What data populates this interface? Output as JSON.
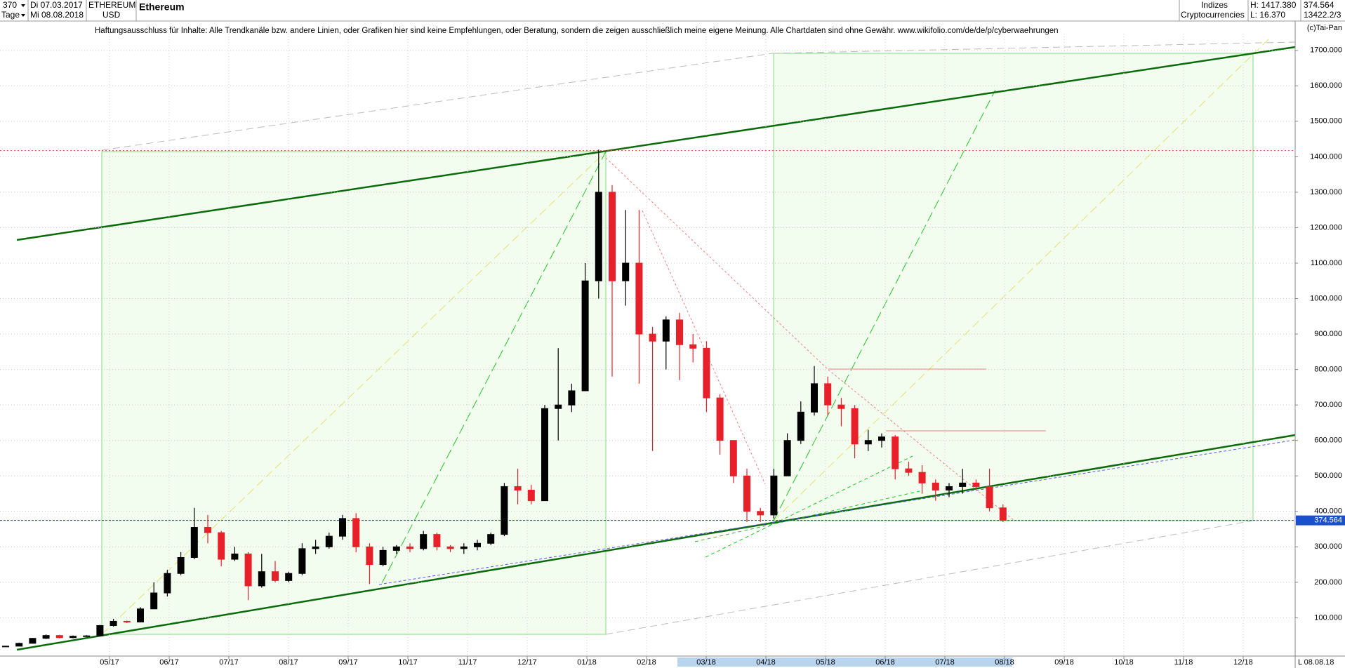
{
  "header": {
    "period": "370",
    "unit": "Tage",
    "from": "Di 07.03.2017",
    "to": "Mi 08.08.2018",
    "symbol": "ETHEREUM",
    "currency": "USD",
    "name": "Ethereum",
    "group": "Indizes",
    "subgroup": "Cryptocurrencies",
    "high": "H: 1417.380",
    "low": "L: 16.370",
    "last": "374.564",
    "id": "13422.2/3",
    "disclaimer": "Haftungsausschluss für Inhalte: Alle Trendkanäle bzw. andere Linien, oder Grafiken hier sind keine Empfehlungen, oder Beratung, sondern die zeigen ausschließlich meine eigene Meinung. Alle Chartdaten sind ohne Gewähr.  www.wikifolio.com/de/de/p/cyberwaehrungen",
    "copyright": "(c)Tai-Pan",
    "end_date": "08.08.18",
    "scale_mode": "L"
  },
  "chart_data": {
    "type": "candlestick",
    "title": "Ethereum",
    "xtick_labels": [
      "05/17",
      "06/17",
      "07/17",
      "08/17",
      "09/17",
      "10/17",
      "11/17",
      "12/17",
      "01/18",
      "02/18",
      "03/18",
      "04/18",
      "05/18",
      "06/18",
      "07/18",
      "08/18",
      "09/18",
      "10/18",
      "11/18",
      "12/18"
    ],
    "ylim": [
      -8,
      1747
    ],
    "yticks": [
      {
        "value": 100,
        "label": "100.000"
      },
      {
        "value": 200,
        "label": "200.000"
      },
      {
        "value": 300,
        "label": "300.000"
      },
      {
        "value": 400,
        "label": "400.000"
      },
      {
        "value": 500,
        "label": "500.000"
      },
      {
        "value": 600,
        "label": "600.000"
      },
      {
        "value": 700,
        "label": "700.000"
      },
      {
        "value": 800,
        "label": "800.000"
      },
      {
        "value": 900,
        "label": "900.000"
      },
      {
        "value": 1000,
        "label": "1000.000"
      },
      {
        "value": 1100,
        "label": "1100.000"
      },
      {
        "value": 1200,
        "label": "1200.000"
      },
      {
        "value": 1300,
        "label": "1300.000"
      },
      {
        "value": 1400,
        "label": "1400.000"
      },
      {
        "value": 1500,
        "label": "1500.000"
      },
      {
        "value": 1600,
        "label": "1600.000"
      },
      {
        "value": 1700,
        "label": "1700.000"
      }
    ],
    "up_color": "#000000",
    "down_color": "#e8202a",
    "last_value": 374.564,
    "last_label": "374.564",
    "high_value": 1417.38,
    "open": [
      19,
      20,
      28,
      42,
      50,
      44,
      48,
      49,
      78,
      90,
      88,
      125,
      170,
      225,
      270,
      355,
      340,
      265,
      280,
      190,
      230,
      205,
      225,
      295,
      300,
      330,
      380,
      300,
      250,
      290,
      300,
      295,
      335,
      300,
      295,
      300,
      310,
      335,
      470,
      460,
      430,
      690,
      700,
      740,
      1050,
      1300,
      1050,
      1100,
      900,
      880,
      940,
      870,
      860,
      720,
      600,
      500,
      400,
      390,
      500,
      600,
      680,
      760,
      700,
      690,
      590,
      600,
      610,
      520,
      510,
      480,
      460,
      470,
      480,
      470,
      410
    ],
    "high": [
      21,
      30,
      43,
      53,
      52,
      50,
      51,
      80,
      97,
      92,
      130,
      200,
      235,
      285,
      410,
      390,
      345,
      300,
      285,
      280,
      260,
      230,
      310,
      320,
      340,
      390,
      395,
      310,
      300,
      305,
      310,
      345,
      340,
      305,
      310,
      320,
      340,
      480,
      520,
      475,
      700,
      860,
      760,
      1100,
      1420,
      1320,
      1250,
      1250,
      920,
      950,
      960,
      900,
      880,
      730,
      600,
      520,
      410,
      520,
      620,
      710,
      810,
      780,
      720,
      700,
      630,
      620,
      615,
      540,
      530,
      490,
      480,
      520,
      490,
      520,
      420
    ],
    "low": [
      18,
      20,
      27,
      40,
      42,
      42,
      46,
      48,
      75,
      85,
      87,
      125,
      160,
      220,
      265,
      310,
      245,
      260,
      150,
      185,
      200,
      200,
      220,
      280,
      295,
      320,
      285,
      195,
      245,
      280,
      285,
      290,
      290,
      285,
      280,
      290,
      305,
      330,
      420,
      420,
      430,
      600,
      680,
      740,
      1000,
      780,
      980,
      760,
      570,
      800,
      770,
      820,
      680,
      560,
      480,
      370,
      370,
      380,
      500,
      590,
      670,
      670,
      640,
      550,
      570,
      580,
      490,
      500,
      450,
      430,
      440,
      450,
      460,
      400,
      370
    ],
    "close": [
      20,
      28,
      42,
      50,
      44,
      48,
      49,
      78,
      90,
      88,
      125,
      170,
      225,
      270,
      355,
      340,
      265,
      280,
      190,
      230,
      205,
      225,
      295,
      300,
      330,
      380,
      300,
      250,
      290,
      300,
      295,
      335,
      300,
      295,
      300,
      310,
      335,
      470,
      460,
      430,
      690,
      700,
      740,
      1050,
      1300,
      1050,
      1100,
      900,
      880,
      940,
      870,
      860,
      720,
      600,
      500,
      400,
      390,
      500,
      600,
      680,
      760,
      700,
      690,
      590,
      600,
      610,
      520,
      510,
      480,
      460,
      470,
      480,
      470,
      410,
      375
    ]
  }
}
